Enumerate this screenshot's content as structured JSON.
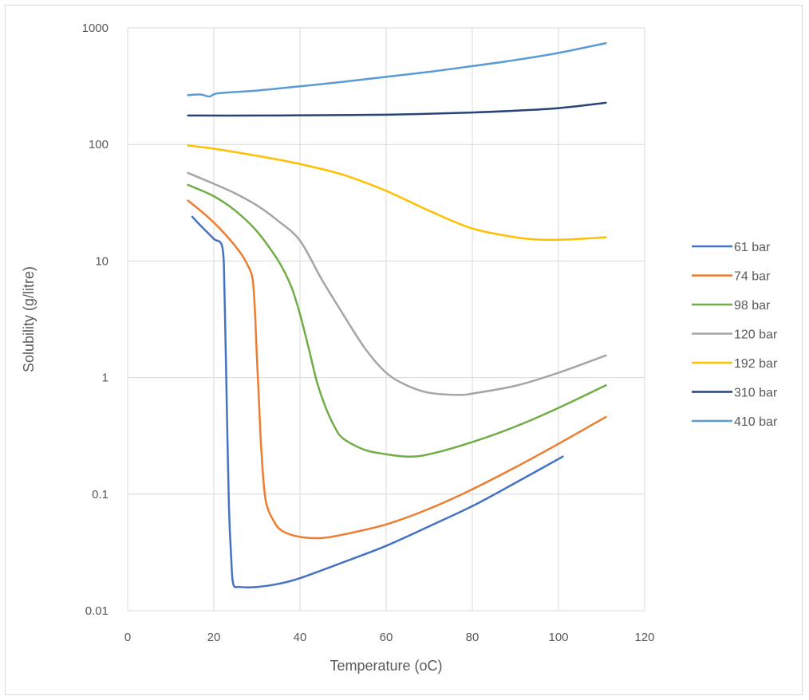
{
  "chart_data": {
    "type": "line",
    "title": "",
    "xlabel": "Temperature (oC)",
    "ylabel": "Solubility (g/litre)",
    "xlim": [
      0,
      120
    ],
    "ylim": [
      0.01,
      1000
    ],
    "y_scale": "log",
    "x_ticks": [
      "0",
      "20",
      "40",
      "60",
      "80",
      "100",
      "120"
    ],
    "y_ticks": [
      "0.01",
      "0.1",
      "1",
      "10",
      "100",
      "1000"
    ],
    "grid": true,
    "legend_position": "right",
    "series": [
      {
        "name": "61 bar",
        "color": "#4472C4",
        "points": [
          [
            15,
            24
          ],
          [
            17,
            20
          ],
          [
            20,
            15.5
          ],
          [
            22,
            13
          ],
          [
            22.5,
            5
          ],
          [
            23,
            0.6
          ],
          [
            23.5,
            0.08
          ],
          [
            24,
            0.03
          ],
          [
            24.5,
            0.017
          ],
          [
            26,
            0.016
          ],
          [
            30,
            0.016
          ],
          [
            35,
            0.017
          ],
          [
            40,
            0.019
          ],
          [
            50,
            0.026
          ],
          [
            60,
            0.036
          ],
          [
            70,
            0.053
          ],
          [
            80,
            0.079
          ],
          [
            90,
            0.125
          ],
          [
            101,
            0.21
          ]
        ]
      },
      {
        "name": "74 bar",
        "color": "#ED7D31",
        "points": [
          [
            14,
            33
          ],
          [
            18,
            25
          ],
          [
            22,
            18
          ],
          [
            26,
            12
          ],
          [
            28,
            9
          ],
          [
            29,
            7
          ],
          [
            29.5,
            4
          ],
          [
            30,
            1.5
          ],
          [
            30.5,
            0.6
          ],
          [
            31,
            0.25
          ],
          [
            32,
            0.09
          ],
          [
            34,
            0.058
          ],
          [
            36,
            0.048
          ],
          [
            40,
            0.043
          ],
          [
            45,
            0.042
          ],
          [
            50,
            0.045
          ],
          [
            60,
            0.055
          ],
          [
            70,
            0.075
          ],
          [
            80,
            0.11
          ],
          [
            90,
            0.17
          ],
          [
            100,
            0.27
          ],
          [
            111,
            0.46
          ]
        ]
      },
      {
        "name": "98 bar",
        "color": "#70AD47",
        "points": [
          [
            14,
            45
          ],
          [
            20,
            36
          ],
          [
            25,
            27
          ],
          [
            30,
            18
          ],
          [
            35,
            10
          ],
          [
            38,
            6
          ],
          [
            40,
            3.5
          ],
          [
            42,
            1.8
          ],
          [
            44,
            0.9
          ],
          [
            46,
            0.55
          ],
          [
            48,
            0.38
          ],
          [
            50,
            0.3
          ],
          [
            55,
            0.24
          ],
          [
            60,
            0.22
          ],
          [
            65,
            0.21
          ],
          [
            70,
            0.22
          ],
          [
            80,
            0.28
          ],
          [
            90,
            0.38
          ],
          [
            100,
            0.55
          ],
          [
            111,
            0.86
          ]
        ]
      },
      {
        "name": "120 bar",
        "color": "#A5A5A5",
        "points": [
          [
            14,
            57
          ],
          [
            20,
            46
          ],
          [
            25,
            38
          ],
          [
            30,
            30
          ],
          [
            35,
            22
          ],
          [
            40,
            15
          ],
          [
            45,
            7
          ],
          [
            50,
            3.5
          ],
          [
            55,
            1.8
          ],
          [
            60,
            1.1
          ],
          [
            65,
            0.85
          ],
          [
            70,
            0.74
          ],
          [
            77,
            0.71
          ],
          [
            80,
            0.73
          ],
          [
            90,
            0.85
          ],
          [
            100,
            1.1
          ],
          [
            111,
            1.55
          ]
        ]
      },
      {
        "name": "192 bar",
        "color": "#FFC000",
        "points": [
          [
            14,
            98
          ],
          [
            20,
            92
          ],
          [
            30,
            80
          ],
          [
            40,
            68
          ],
          [
            50,
            55
          ],
          [
            60,
            40
          ],
          [
            70,
            27
          ],
          [
            80,
            19
          ],
          [
            90,
            16
          ],
          [
            95,
            15.3
          ],
          [
            100,
            15.2
          ],
          [
            105,
            15.5
          ],
          [
            111,
            16
          ]
        ]
      },
      {
        "name": "310 bar",
        "color": "#264478",
        "points": [
          [
            14,
            177
          ],
          [
            30,
            177
          ],
          [
            40,
            178
          ],
          [
            60,
            180
          ],
          [
            80,
            188
          ],
          [
            90,
            195
          ],
          [
            100,
            205
          ],
          [
            111,
            228
          ]
        ]
      },
      {
        "name": "410 bar",
        "color": "#5B9BD5",
        "points": [
          [
            14,
            265
          ],
          [
            17,
            268
          ],
          [
            19,
            258
          ],
          [
            21,
            275
          ],
          [
            30,
            290
          ],
          [
            40,
            315
          ],
          [
            50,
            345
          ],
          [
            60,
            380
          ],
          [
            70,
            420
          ],
          [
            80,
            470
          ],
          [
            90,
            530
          ],
          [
            100,
            610
          ],
          [
            111,
            740
          ]
        ]
      }
    ]
  }
}
